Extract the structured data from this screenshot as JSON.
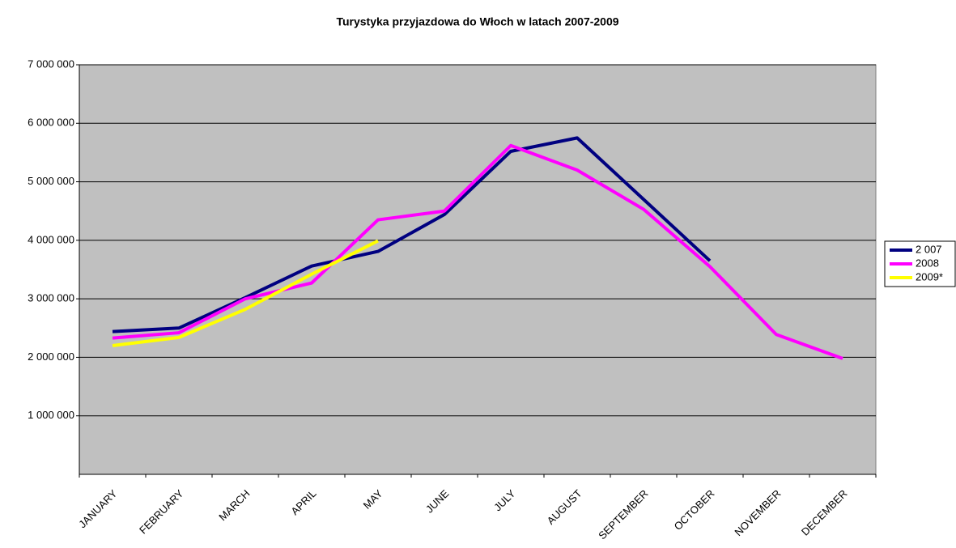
{
  "chart_data": {
    "type": "line",
    "title": "Turystyka przyjazdowa do Włoch w latach 2007-2009",
    "categories": [
      "JANUARY",
      "FEBRUARY",
      "MARCH",
      "APRIL",
      "MAY",
      "JUNE",
      "JULY",
      "AUGUST",
      "SEPTEMBER",
      "OCTOBER",
      "NOVEMBER",
      "DECEMBER"
    ],
    "series": [
      {
        "name": "2 007",
        "color": "#000080",
        "values": [
          2440000,
          2500000,
          3020000,
          3560000,
          3810000,
          4440000,
          5520000,
          5750000,
          4700000,
          3650000,
          null,
          null
        ]
      },
      {
        "name": "2008",
        "color": "#ff00ff",
        "values": [
          2330000,
          2420000,
          3000000,
          3270000,
          4350000,
          4500000,
          5620000,
          5200000,
          4530000,
          3550000,
          2390000,
          1980000
        ]
      },
      {
        "name": "2009*",
        "color": "#ffff00",
        "values": [
          2200000,
          2340000,
          2820000,
          3420000,
          3990000,
          null,
          null,
          null,
          null,
          null,
          null,
          null
        ]
      }
    ],
    "ylim": [
      0,
      7000000
    ],
    "yticks": [
      {
        "value": 1000000,
        "label": "1 000 000"
      },
      {
        "value": 2000000,
        "label": "2 000 000"
      },
      {
        "value": 3000000,
        "label": "3 000 000"
      },
      {
        "value": 4000000,
        "label": "4 000 000"
      },
      {
        "value": 5000000,
        "label": "5 000 000"
      },
      {
        "value": 6000000,
        "label": "6 000 000"
      },
      {
        "value": 7000000,
        "label": "7 000 000"
      }
    ],
    "grid": true,
    "legend": "right",
    "plot_background": "#c0c0c0"
  }
}
